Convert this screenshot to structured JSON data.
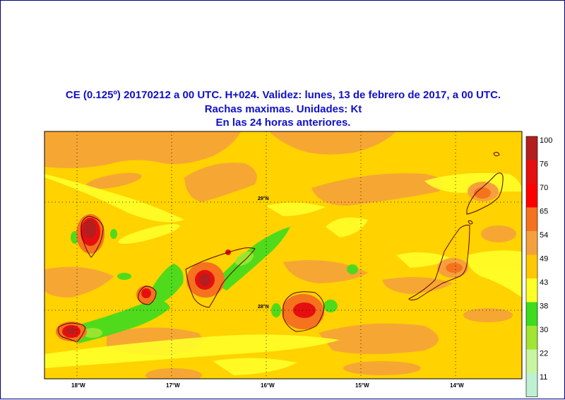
{
  "header": {
    "line1": "CE (0.125º) 20170212 a 00 UTC.  H+024. Validez: lunes, 13 de febrero de 2017,  a  00 UTC.",
    "line2": "Rachas maximas. Unidades: Kt",
    "line3": "En las 24 horas anteriores."
  },
  "map": {
    "lon_labels": [
      "18°W",
      "17°W",
      "16°W",
      "15°W",
      "14°W"
    ],
    "lat_labels": [
      "29°N",
      "28°N"
    ],
    "colors": {
      "background": "#ffd200",
      "frame": "#00007a",
      "coast": "#5a0000"
    }
  },
  "colorbar": {
    "labels": [
      "100",
      "76",
      "70",
      "65",
      "54",
      "49",
      "43",
      "38",
      "30",
      "22",
      "11"
    ],
    "bins": [
      {
        "label": "100",
        "color": "#b41e1e"
      },
      {
        "label": "76",
        "color": "#e60f0f"
      },
      {
        "label": "70",
        "color": "#ff0000"
      },
      {
        "label": "65",
        "color": "#f5731e"
      },
      {
        "label": "54",
        "color": "#f5a03c"
      },
      {
        "label": "49",
        "color": "#ffc800"
      },
      {
        "label": "43",
        "color": "#ffff28"
      },
      {
        "label": "38",
        "color": "#3cdc1e"
      },
      {
        "label": "30",
        "color": "#a0e632"
      },
      {
        "label": "22",
        "color": "#c8f5a0"
      },
      {
        "label": "11",
        "color": "#bef0d2"
      }
    ]
  }
}
